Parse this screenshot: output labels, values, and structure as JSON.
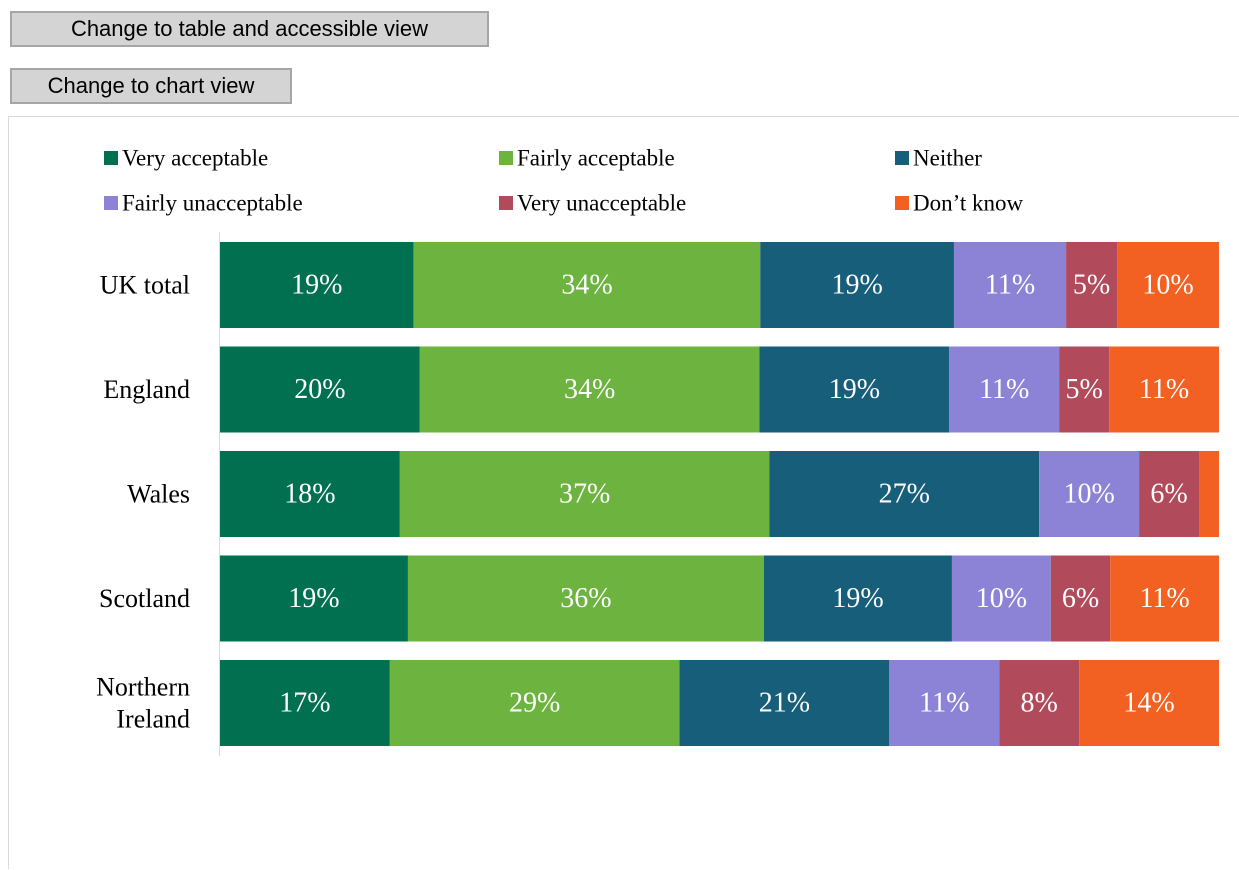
{
  "controls": {
    "table_view_label": "Change to table and accessible view",
    "chart_view_label": "Change to chart view"
  },
  "chart_data": {
    "type": "bar",
    "orientation": "horizontal",
    "stacked": true,
    "normalized_percent": true,
    "categories": [
      [
        "UK total"
      ],
      [
        "England"
      ],
      [
        "Wales"
      ],
      [
        "Scotland"
      ],
      [
        "Northern",
        "Ireland"
      ]
    ],
    "series": [
      {
        "name": "Very acceptable",
        "color": "#007050",
        "values": [
          19,
          20,
          18,
          19,
          17
        ]
      },
      {
        "name": "Fairly acceptable",
        "color": "#6db33f",
        "values": [
          34,
          34,
          37,
          36,
          29
        ]
      },
      {
        "name": "Neither",
        "color": "#175e7b",
        "values": [
          19,
          19,
          27,
          19,
          21
        ]
      },
      {
        "name": "Fairly unacceptable",
        "color": "#8d83d6",
        "values": [
          11,
          11,
          10,
          10,
          11
        ]
      },
      {
        "name": "Very unacceptable",
        "color": "#b14a5b",
        "values": [
          5,
          5,
          6,
          6,
          8
        ]
      },
      {
        "name": "Don’t know",
        "color": "#f26122",
        "values": [
          10,
          11,
          2,
          11,
          14
        ]
      }
    ],
    "data_labels": [
      [
        "19%",
        "34%",
        "19%",
        "11%",
        "5%",
        "10%"
      ],
      [
        "20%",
        "34%",
        "19%",
        "11%",
        "5%",
        "11%"
      ],
      [
        "18%",
        "37%",
        "27%",
        "10%",
        "6%",
        ""
      ],
      [
        "19%",
        "36%",
        "19%",
        "10%",
        "6%",
        "11%"
      ],
      [
        "17%",
        "29%",
        "21%",
        "11%",
        "8%",
        "14%"
      ]
    ],
    "legend_position": "top",
    "grid": false
  }
}
